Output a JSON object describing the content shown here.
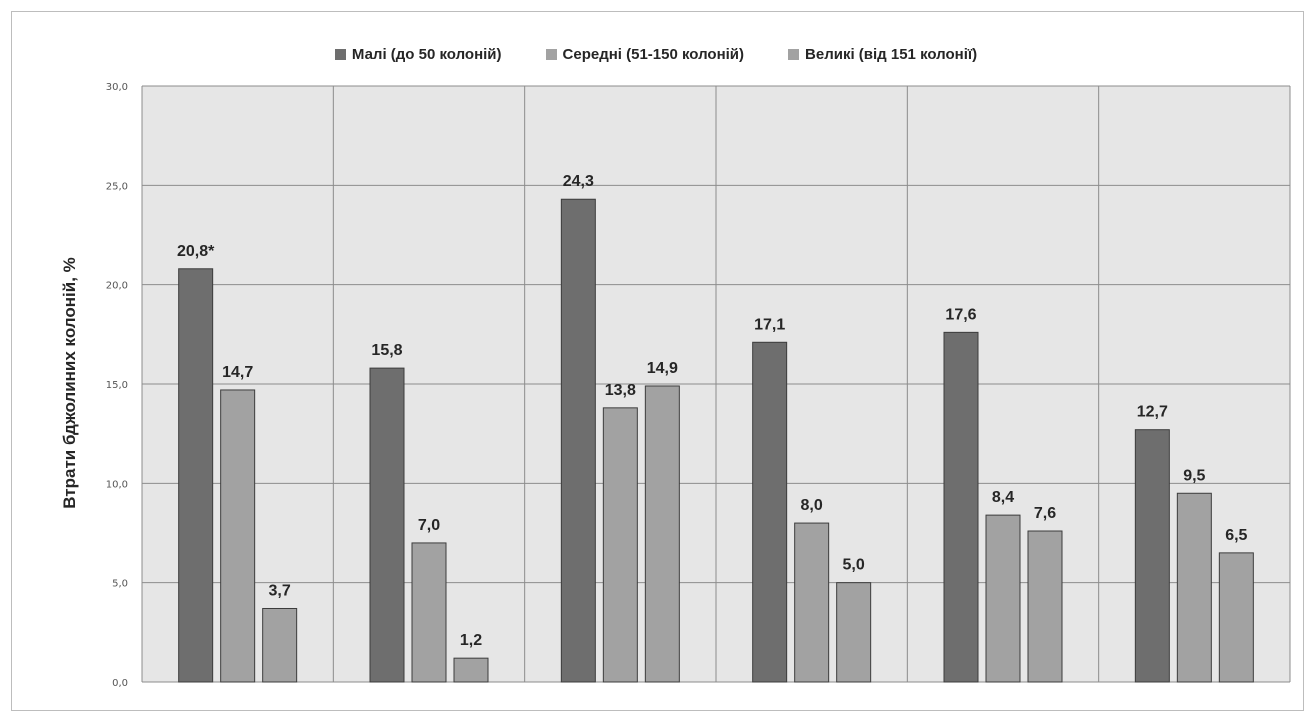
{
  "chart_data": {
    "type": "bar",
    "title": "",
    "xlabel": "",
    "ylabel": "Втрати бджолиних колоній, %",
    "ylim": [
      0,
      30
    ],
    "yticks": [
      "0,0",
      "5,0",
      "10,0",
      "15,0",
      "20,0",
      "25,0",
      "30,0"
    ],
    "grid": true,
    "legend_position": "top",
    "categories": [
      "",
      "",
      "",
      "",
      "",
      ""
    ],
    "series": [
      {
        "name": "Малі (до 50 колоній)",
        "color": "#6e6e6e",
        "values": [
          20.8,
          15.8,
          24.3,
          17.1,
          17.6,
          12.7
        ],
        "labels": [
          "20,8*",
          "15,8",
          "24,3",
          "17,1",
          "17,6",
          "12,7"
        ]
      },
      {
        "name": "Середні (51-150 колоній)",
        "color": "#a2a2a2",
        "values": [
          14.7,
          7.0,
          13.8,
          8.0,
          8.4,
          9.5
        ],
        "labels": [
          "14,7",
          "7,0",
          "13,8",
          "8,0",
          "8,4",
          "9,5"
        ]
      },
      {
        "name": "Великі (від 151 колонії)",
        "color": "#a2a2a2",
        "values": [
          3.7,
          1.2,
          14.9,
          5.0,
          7.6,
          6.5
        ],
        "labels": [
          "3,7",
          "1,2",
          "14,9",
          "5,0",
          "7,6",
          "6,5"
        ]
      }
    ]
  }
}
